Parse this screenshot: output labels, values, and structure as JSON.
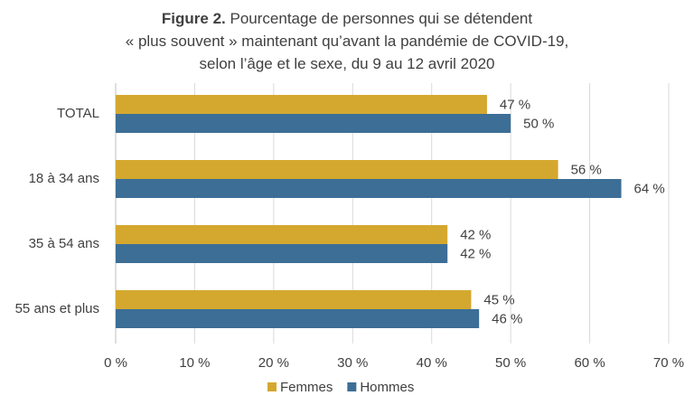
{
  "chart_data": {
    "type": "bar",
    "orientation": "horizontal",
    "title_prefix": "Figure 2.",
    "title_lines": [
      "Pourcentage de personnes qui se détendent",
      "« plus souvent » maintenant qu’avant la pandémie de COVID-19,",
      "selon l’âge et le sexe, du 9 au 12 avril 2020"
    ],
    "categories": [
      "TOTAL",
      "18 à 34 ans",
      "35 à 54 ans",
      "55 ans et plus"
    ],
    "series": [
      {
        "name": "Femmes",
        "color": "#D4A82F",
        "values": [
          47,
          56,
          42,
          45
        ],
        "labels": [
          "47 %",
          "56 %",
          "42 %",
          "45 %"
        ]
      },
      {
        "name": "Hommes",
        "color": "#3C6E96",
        "values": [
          50,
          64,
          42,
          46
        ],
        "labels": [
          "50 %",
          "64 %",
          "42 %",
          "46 %"
        ]
      }
    ],
    "xlim": [
      0,
      70
    ],
    "xticks": [
      {
        "value": 0,
        "label": "0 %"
      },
      {
        "value": 10,
        "label": "10 %"
      },
      {
        "value": 20,
        "label": "20 %"
      },
      {
        "value": 30,
        "label": "30 %"
      },
      {
        "value": 40,
        "label": "40 %"
      },
      {
        "value": 50,
        "label": "50 %"
      },
      {
        "value": 60,
        "label": "60 %"
      },
      {
        "value": 70,
        "label": "70 %"
      }
    ],
    "grid": true,
    "legend_position": "bottom"
  }
}
